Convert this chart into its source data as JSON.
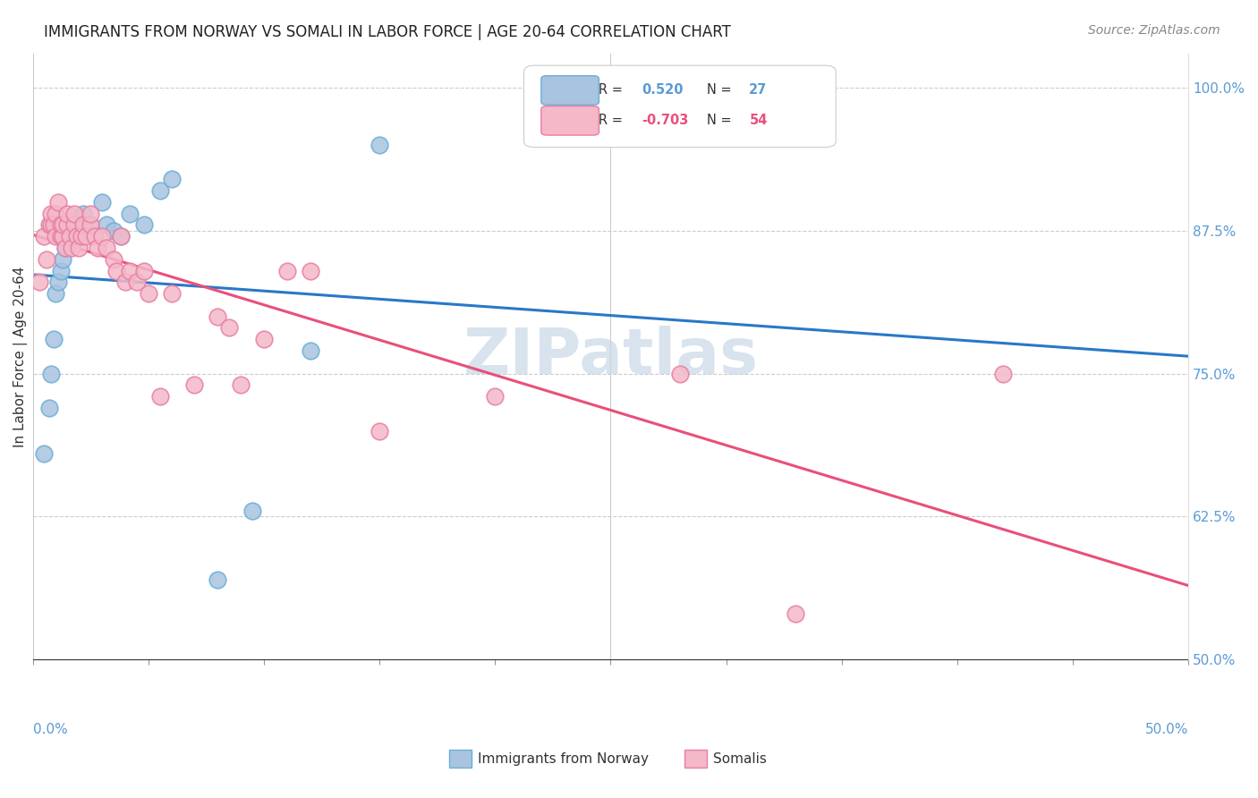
{
  "title": "IMMIGRANTS FROM NORWAY VS SOMALI IN LABOR FORCE | AGE 20-64 CORRELATION CHART",
  "source": "Source: ZipAtlas.com",
  "ylabel": "In Labor Force | Age 20-64",
  "yticks": [
    0.5,
    0.625,
    0.75,
    0.875,
    1.0
  ],
  "ytick_labels": [
    "50.0%",
    "62.5%",
    "75.0%",
    "87.5%",
    "100.0%"
  ],
  "xmin": 0.0,
  "xmax": 0.5,
  "ymin": 0.5,
  "ymax": 1.03,
  "norway_R": "0.520",
  "norway_N": "27",
  "somali_R": "-0.703",
  "somali_N": "54",
  "norway_color": "#a8c4e0",
  "norway_edge": "#6baed6",
  "somali_color": "#f4b8c8",
  "somali_edge": "#e87ea1",
  "trend_norway_color": "#2878c8",
  "trend_somali_color": "#e8507a",
  "watermark_color": "#c8d8e8",
  "norway_x": [
    0.005,
    0.007,
    0.008,
    0.009,
    0.01,
    0.011,
    0.012,
    0.013,
    0.014,
    0.015,
    0.017,
    0.018,
    0.02,
    0.022,
    0.025,
    0.03,
    0.032,
    0.035,
    0.038,
    0.042,
    0.048,
    0.055,
    0.06,
    0.08,
    0.095,
    0.12,
    0.15
  ],
  "norway_y": [
    0.68,
    0.72,
    0.75,
    0.78,
    0.82,
    0.83,
    0.84,
    0.85,
    0.86,
    0.87,
    0.87,
    0.88,
    0.88,
    0.89,
    0.88,
    0.9,
    0.88,
    0.875,
    0.87,
    0.89,
    0.88,
    0.91,
    0.92,
    0.57,
    0.63,
    0.77,
    0.95
  ],
  "somali_x": [
    0.003,
    0.005,
    0.006,
    0.007,
    0.008,
    0.008,
    0.009,
    0.01,
    0.01,
    0.011,
    0.012,
    0.012,
    0.013,
    0.013,
    0.014,
    0.015,
    0.015,
    0.016,
    0.017,
    0.018,
    0.018,
    0.019,
    0.02,
    0.021,
    0.022,
    0.023,
    0.025,
    0.025,
    0.027,
    0.028,
    0.03,
    0.032,
    0.035,
    0.036,
    0.038,
    0.04,
    0.042,
    0.045,
    0.048,
    0.05,
    0.055,
    0.06,
    0.07,
    0.08,
    0.085,
    0.09,
    0.1,
    0.11,
    0.12,
    0.15,
    0.2,
    0.28,
    0.33,
    0.42
  ],
  "somali_y": [
    0.83,
    0.87,
    0.85,
    0.88,
    0.88,
    0.89,
    0.88,
    0.87,
    0.89,
    0.9,
    0.87,
    0.88,
    0.87,
    0.88,
    0.86,
    0.88,
    0.89,
    0.87,
    0.86,
    0.88,
    0.89,
    0.87,
    0.86,
    0.87,
    0.88,
    0.87,
    0.88,
    0.89,
    0.87,
    0.86,
    0.87,
    0.86,
    0.85,
    0.84,
    0.87,
    0.83,
    0.84,
    0.83,
    0.84,
    0.82,
    0.73,
    0.82,
    0.74,
    0.8,
    0.79,
    0.74,
    0.78,
    0.84,
    0.84,
    0.7,
    0.73,
    0.75,
    0.54,
    0.75
  ],
  "legend_box_color": "#ffffff",
  "legend_border_color": "#cccccc"
}
